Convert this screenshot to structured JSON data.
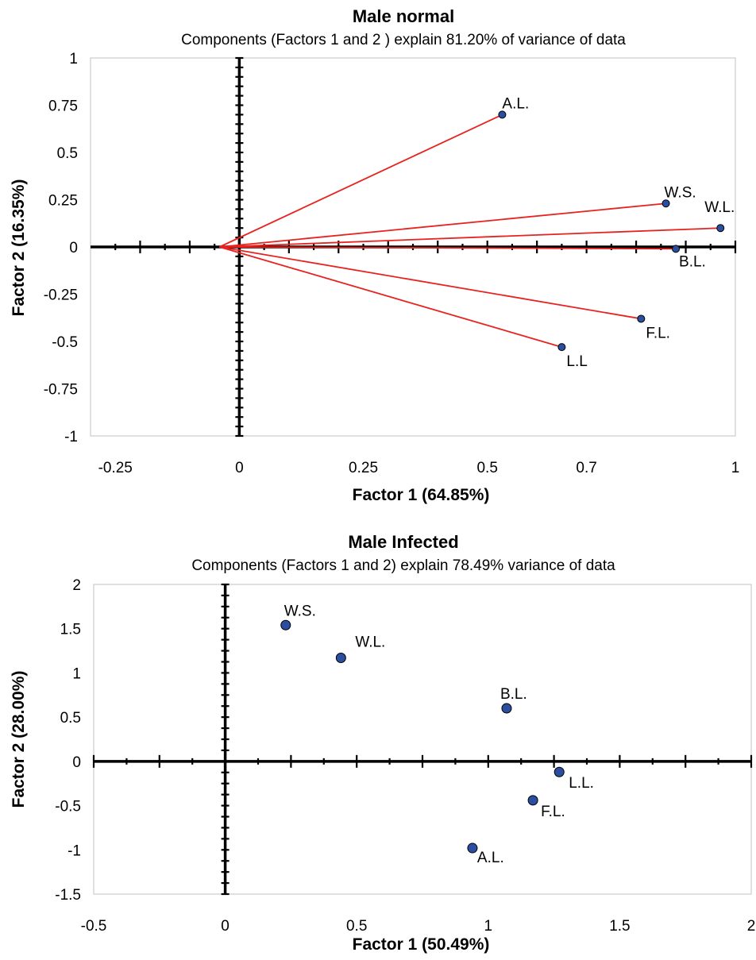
{
  "chart_data": [
    {
      "type": "scatter",
      "style": "biplot",
      "title": "Male normal",
      "subtitle": "Components (Factors 1 and 2 ) explain 81.20% of variance of data",
      "xlabel": "Factor 1 (64.85%)",
      "ylabel": "Factor 2 (16.35%)",
      "xlim": [
        -0.3,
        1.0
      ],
      "ylim": [
        -1.0,
        1.0
      ],
      "xticks": [
        -0.25,
        0,
        0.25,
        0.5,
        0.7,
        1
      ],
      "xtick_labels": [
        "-0.25",
        "0",
        "0.25",
        "0.5",
        "0.7",
        "1"
      ],
      "yticks": [
        1,
        0.75,
        0.5,
        0.25,
        0,
        -0.25,
        -0.5,
        -0.75,
        -1
      ],
      "ytick_labels": [
        "1",
        "0.75",
        "0.5",
        "0.25",
        "0",
        "-0.25",
        "-0.5",
        "-0.75",
        "-1"
      ],
      "origin": [
        -0.04,
        0
      ],
      "vector_color": "#e8231f",
      "marker_color": "#2b4ea0",
      "points": [
        {
          "label": "A.L.",
          "x": 0.53,
          "y": 0.7
        },
        {
          "label": "W.S.",
          "x": 0.86,
          "y": 0.23
        },
        {
          "label": "W.L.",
          "x": 0.97,
          "y": 0.1
        },
        {
          "label": "B.L.",
          "x": 0.88,
          "y": -0.01
        },
        {
          "label": "F.L.",
          "x": 0.81,
          "y": -0.38
        },
        {
          "label": "L.L",
          "x": 0.65,
          "y": -0.53
        }
      ]
    },
    {
      "type": "scatter",
      "title": "Male Infected",
      "subtitle": "Components (Factors 1 and 2) explain 78.49% variance of data",
      "xlabel": "Factor 1 (50.49%)",
      "ylabel": "Factor 2 (28.00%)",
      "xlim": [
        -0.5,
        2.0
      ],
      "ylim": [
        -1.5,
        2.0
      ],
      "xticks": [
        -0.5,
        0,
        0.5,
        1,
        1.5,
        2
      ],
      "xtick_labels": [
        "-0.5",
        "0",
        "0.5",
        "1",
        "1.5",
        "2"
      ],
      "yticks": [
        2,
        1.5,
        1,
        0.5,
        0,
        -0.5,
        -1,
        -1.5
      ],
      "ytick_labels": [
        "2",
        "1.5",
        "1",
        "0.5",
        "0",
        "-0.5",
        "-1",
        "-1.5"
      ],
      "marker_color": "#2b4ea0",
      "points": [
        {
          "label": "W.S.",
          "x": 0.23,
          "y": 1.54
        },
        {
          "label": "W.L.",
          "x": 0.44,
          "y": 1.17
        },
        {
          "label": "B.L.",
          "x": 1.07,
          "y": 0.6
        },
        {
          "label": "L.L.",
          "x": 1.27,
          "y": -0.12
        },
        {
          "label": "F.L.",
          "x": 1.17,
          "y": -0.44
        },
        {
          "label": "A.L.",
          "x": 0.94,
          "y": -0.98
        }
      ]
    }
  ]
}
